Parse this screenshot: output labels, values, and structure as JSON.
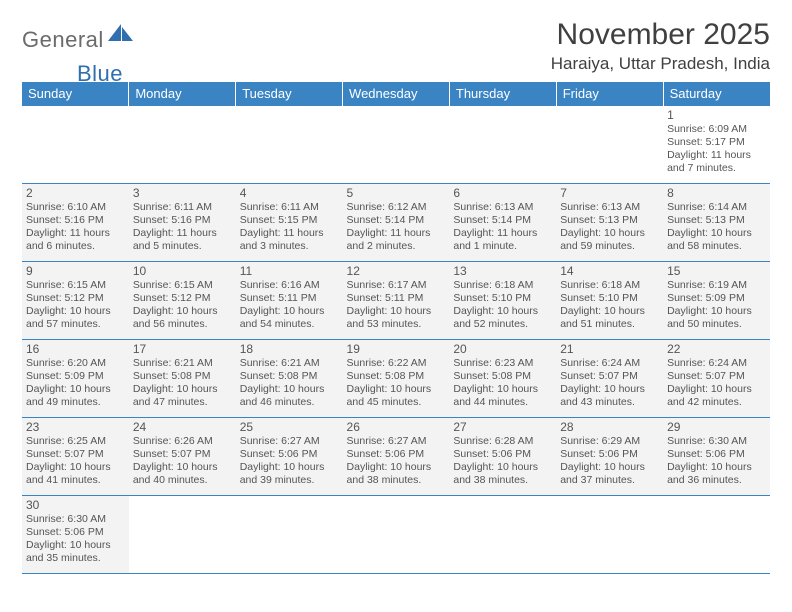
{
  "logo": {
    "text1": "General",
    "text2": "Blue"
  },
  "title": "November 2025",
  "location": "Haraiya, Uttar Pradesh, India",
  "colors": {
    "header_bg": "#3b84c4",
    "cell_bg": "#f3f3f3",
    "text": "#555555"
  },
  "weekdays": [
    "Sunday",
    "Monday",
    "Tuesday",
    "Wednesday",
    "Thursday",
    "Friday",
    "Saturday"
  ],
  "days": {
    "1": {
      "sr": "6:09 AM",
      "ss": "5:17 PM",
      "dl": "11 hours",
      "dm": "and 7 minutes."
    },
    "2": {
      "sr": "6:10 AM",
      "ss": "5:16 PM",
      "dl": "11 hours",
      "dm": "and 6 minutes."
    },
    "3": {
      "sr": "6:11 AM",
      "ss": "5:16 PM",
      "dl": "11 hours",
      "dm": "and 5 minutes."
    },
    "4": {
      "sr": "6:11 AM",
      "ss": "5:15 PM",
      "dl": "11 hours",
      "dm": "and 3 minutes."
    },
    "5": {
      "sr": "6:12 AM",
      "ss": "5:14 PM",
      "dl": "11 hours",
      "dm": "and 2 minutes."
    },
    "6": {
      "sr": "6:13 AM",
      "ss": "5:14 PM",
      "dl": "11 hours",
      "dm": "and 1 minute."
    },
    "7": {
      "sr": "6:13 AM",
      "ss": "5:13 PM",
      "dl": "10 hours",
      "dm": "and 59 minutes."
    },
    "8": {
      "sr": "6:14 AM",
      "ss": "5:13 PM",
      "dl": "10 hours",
      "dm": "and 58 minutes."
    },
    "9": {
      "sr": "6:15 AM",
      "ss": "5:12 PM",
      "dl": "10 hours",
      "dm": "and 57 minutes."
    },
    "10": {
      "sr": "6:15 AM",
      "ss": "5:12 PM",
      "dl": "10 hours",
      "dm": "and 56 minutes."
    },
    "11": {
      "sr": "6:16 AM",
      "ss": "5:11 PM",
      "dl": "10 hours",
      "dm": "and 54 minutes."
    },
    "12": {
      "sr": "6:17 AM",
      "ss": "5:11 PM",
      "dl": "10 hours",
      "dm": "and 53 minutes."
    },
    "13": {
      "sr": "6:18 AM",
      "ss": "5:10 PM",
      "dl": "10 hours",
      "dm": "and 52 minutes."
    },
    "14": {
      "sr": "6:18 AM",
      "ss": "5:10 PM",
      "dl": "10 hours",
      "dm": "and 51 minutes."
    },
    "15": {
      "sr": "6:19 AM",
      "ss": "5:09 PM",
      "dl": "10 hours",
      "dm": "and 50 minutes."
    },
    "16": {
      "sr": "6:20 AM",
      "ss": "5:09 PM",
      "dl": "10 hours",
      "dm": "and 49 minutes."
    },
    "17": {
      "sr": "6:21 AM",
      "ss": "5:08 PM",
      "dl": "10 hours",
      "dm": "and 47 minutes."
    },
    "18": {
      "sr": "6:21 AM",
      "ss": "5:08 PM",
      "dl": "10 hours",
      "dm": "and 46 minutes."
    },
    "19": {
      "sr": "6:22 AM",
      "ss": "5:08 PM",
      "dl": "10 hours",
      "dm": "and 45 minutes."
    },
    "20": {
      "sr": "6:23 AM",
      "ss": "5:08 PM",
      "dl": "10 hours",
      "dm": "and 44 minutes."
    },
    "21": {
      "sr": "6:24 AM",
      "ss": "5:07 PM",
      "dl": "10 hours",
      "dm": "and 43 minutes."
    },
    "22": {
      "sr": "6:24 AM",
      "ss": "5:07 PM",
      "dl": "10 hours",
      "dm": "and 42 minutes."
    },
    "23": {
      "sr": "6:25 AM",
      "ss": "5:07 PM",
      "dl": "10 hours",
      "dm": "and 41 minutes."
    },
    "24": {
      "sr": "6:26 AM",
      "ss": "5:07 PM",
      "dl": "10 hours",
      "dm": "and 40 minutes."
    },
    "25": {
      "sr": "6:27 AM",
      "ss": "5:06 PM",
      "dl": "10 hours",
      "dm": "and 39 minutes."
    },
    "26": {
      "sr": "6:27 AM",
      "ss": "5:06 PM",
      "dl": "10 hours",
      "dm": "and 38 minutes."
    },
    "27": {
      "sr": "6:28 AM",
      "ss": "5:06 PM",
      "dl": "10 hours",
      "dm": "and 38 minutes."
    },
    "28": {
      "sr": "6:29 AM",
      "ss": "5:06 PM",
      "dl": "10 hours",
      "dm": "and 37 minutes."
    },
    "29": {
      "sr": "6:30 AM",
      "ss": "5:06 PM",
      "dl": "10 hours",
      "dm": "and 36 minutes."
    },
    "30": {
      "sr": "6:30 AM",
      "ss": "5:06 PM",
      "dl": "10 hours",
      "dm": "and 35 minutes."
    }
  },
  "labels": {
    "sr": "Sunrise: ",
    "ss": "Sunset: ",
    "dl": "Daylight: "
  },
  "grid": [
    [
      null,
      null,
      null,
      null,
      null,
      null,
      "1"
    ],
    [
      "2",
      "3",
      "4",
      "5",
      "6",
      "7",
      "8"
    ],
    [
      "9",
      "10",
      "11",
      "12",
      "13",
      "14",
      "15"
    ],
    [
      "16",
      "17",
      "18",
      "19",
      "20",
      "21",
      "22"
    ],
    [
      "23",
      "24",
      "25",
      "26",
      "27",
      "28",
      "29"
    ],
    [
      "30",
      null,
      null,
      null,
      null,
      null,
      null
    ]
  ]
}
